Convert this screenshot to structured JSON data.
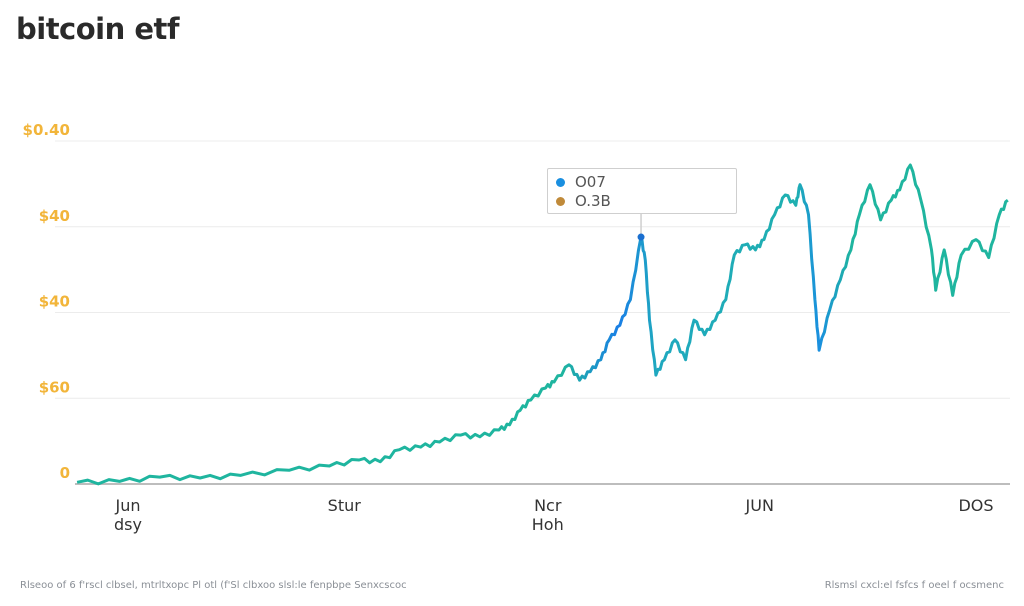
{
  "title": "bitcoin etf",
  "tooltip": {
    "rows": [
      {
        "label": "O07",
        "color": "#1a8fe0"
      },
      {
        "label": "O.3B",
        "color": "#c08a3a"
      }
    ]
  },
  "footer": {
    "left": "Rlseoo of 6 f'rscl clbsel, mtrltxopc Pl otl (f'Sl clbxoo slsl:le fenpbpe Senxcscoc",
    "right": "Rlsmsl cxcl:el fsfcs f oeel f ocsmenc"
  },
  "chart_data": {
    "type": "line",
    "title": "bitcoin etf",
    "xlabel": "",
    "ylabel": "",
    "grid": true,
    "legend": "none",
    "line_color_start": "#1fb59f",
    "line_color_peak": "#1a7fe6",
    "yticks": [
      {
        "value": 0,
        "label": "0"
      },
      {
        "value": 1,
        "label": "$60"
      },
      {
        "value": 2,
        "label": "$40"
      },
      {
        "value": 3,
        "label": "$40"
      },
      {
        "value": 4,
        "label": "$0.40"
      }
    ],
    "xticks": [
      {
        "value": 0,
        "label": "Jun",
        "sub": "dsy"
      },
      {
        "value": 1.02,
        "label": "Stur",
        "sub": ""
      },
      {
        "value": 1.98,
        "label": "Ncr",
        "sub": "Hoh"
      },
      {
        "value": 2.98,
        "label": "JUN",
        "sub": ""
      },
      {
        "value": 4.0,
        "label": "DOS",
        "sub": ""
      }
    ],
    "xlim": [
      -0.24,
      4.15
    ],
    "ylim": [
      0,
      4
    ],
    "series": [
      {
        "x": [
          -0.24,
          -0.04,
          0.15,
          0.34,
          0.53,
          0.76,
          0.95,
          1.09,
          1.19,
          1.28,
          1.38,
          1.47,
          1.57,
          1.66,
          1.75,
          1.8,
          1.85,
          1.9,
          1.97,
          2.01,
          2.08,
          2.13,
          2.18,
          2.23,
          2.27,
          2.32,
          2.37,
          2.42,
          2.44,
          2.46,
          2.49,
          2.53,
          2.58,
          2.63,
          2.67,
          2.72,
          2.77,
          2.82,
          2.86,
          2.91,
          2.96,
          3.0,
          3.05,
          3.1,
          3.15,
          3.17,
          3.21,
          3.24,
          3.26,
          3.31,
          3.36,
          3.41,
          3.45,
          3.5,
          3.55,
          3.6,
          3.64,
          3.69,
          3.74,
          3.79,
          3.81,
          3.85,
          3.89,
          3.93,
          4.0,
          4.06,
          4.11,
          4.15
        ],
        "y": [
          0.02,
          0.03,
          0.08,
          0.07,
          0.1,
          0.16,
          0.21,
          0.28,
          0.26,
          0.4,
          0.43,
          0.49,
          0.57,
          0.55,
          0.63,
          0.69,
          0.86,
          0.98,
          1.12,
          1.19,
          1.39,
          1.21,
          1.31,
          1.45,
          1.68,
          1.85,
          2.15,
          2.88,
          2.61,
          1.91,
          1.27,
          1.45,
          1.68,
          1.45,
          1.91,
          1.74,
          1.91,
          2.15,
          2.67,
          2.79,
          2.73,
          2.85,
          3.14,
          3.37,
          3.25,
          3.49,
          3.14,
          2.15,
          1.56,
          2.03,
          2.38,
          2.73,
          3.14,
          3.49,
          3.08,
          3.31,
          3.43,
          3.72,
          3.31,
          2.73,
          2.26,
          2.73,
          2.2,
          2.67,
          2.85,
          2.64,
          3.14,
          3.31
        ]
      }
    ],
    "highlight_x": 2.42
  }
}
